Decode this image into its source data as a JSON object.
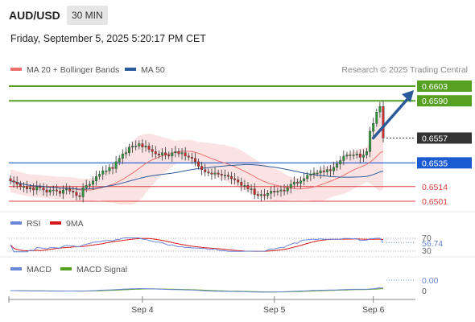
{
  "header": {
    "symbol": "AUD/USD",
    "timeframe": "30 MIN",
    "datetime": "Friday, September 5, 2025 5:20:17 PM CET"
  },
  "legend": {
    "ma20": "MA 20 + Bollinger Bands",
    "ma50": "MA 50",
    "credit": "Research © 2025 Trading Central",
    "ma20_color": "#f07070",
    "ma50_color": "#2a5a9a"
  },
  "chart_data": {
    "type": "candlestick",
    "levels": [
      {
        "value": "0.6603",
        "kind": "resistance",
        "color": "#55a020"
      },
      {
        "value": "0.6590",
        "kind": "resistance",
        "color": "#55a020"
      },
      {
        "value": "0.6557",
        "kind": "last-price",
        "color": "#333333"
      },
      {
        "value": "0.6535",
        "kind": "pivot",
        "color": "#1a5bd1"
      },
      {
        "value": "0.6514",
        "kind": "support",
        "color": "#e04040"
      },
      {
        "value": "0.6501",
        "kind": "support",
        "color": "#e04040"
      }
    ],
    "close_series": [
      0.6519,
      0.6518,
      0.6516,
      0.6514,
      0.6514,
      0.6512,
      0.6513,
      0.6511,
      0.6514,
      0.6513,
      0.6511,
      0.6509,
      0.6511,
      0.6511,
      0.651,
      0.6508,
      0.6511,
      0.6512,
      0.651,
      0.6509,
      0.6506,
      0.6505,
      0.6513,
      0.6515,
      0.6516,
      0.6519,
      0.6523,
      0.6525,
      0.6528,
      0.6528,
      0.6531,
      0.653,
      0.6536,
      0.6539,
      0.6543,
      0.6544,
      0.6549,
      0.655,
      0.655,
      0.6552,
      0.6549,
      0.655,
      0.6547,
      0.6545,
      0.6543,
      0.6542,
      0.6544,
      0.6542,
      0.6541,
      0.6544,
      0.6545,
      0.6543,
      0.6544,
      0.6541,
      0.654,
      0.6539,
      0.6536,
      0.6532,
      0.6529,
      0.6527,
      0.6526,
      0.6525,
      0.6526,
      0.6525,
      0.6524,
      0.6524,
      0.6523,
      0.6521,
      0.652,
      0.6518,
      0.6515,
      0.6515,
      0.6512,
      0.6512,
      0.6507,
      0.6506,
      0.6507,
      0.6506,
      0.6508,
      0.651,
      0.6509,
      0.651,
      0.6511,
      0.651,
      0.6513,
      0.6516,
      0.6518,
      0.6517,
      0.6519,
      0.6521,
      0.6524,
      0.6525,
      0.6526,
      0.6526,
      0.6528,
      0.6527,
      0.6529,
      0.6528,
      0.6531,
      0.6534,
      0.6537,
      0.6541,
      0.6542,
      0.6542,
      0.6542,
      0.6543,
      0.654,
      0.6542,
      0.6545,
      0.6563,
      0.657,
      0.658,
      0.6585,
      0.6557
    ],
    "x_ticks": [
      {
        "label": "Sep 4",
        "index": 40
      },
      {
        "label": "Sep 5",
        "index": 80
      },
      {
        "label": "Sep 6",
        "index": 110
      }
    ],
    "arrow": {
      "from": {
        "index": 109,
        "value": 0.6557
      },
      "to": {
        "index": 117,
        "value": 0.6598
      }
    }
  },
  "rsi": {
    "label": "RSI",
    "ma_label": "9MA",
    "value": "56.74",
    "level_high": "70",
    "level_low": "30",
    "rsi_color": "#6a86d8",
    "ma_color": "#d81818"
  },
  "macd": {
    "label": "MACD",
    "signal_label": "MACD Signal",
    "value": "0.00",
    "zero": "0",
    "macd_color": "#6a86d8",
    "signal_color": "#55a020"
  }
}
